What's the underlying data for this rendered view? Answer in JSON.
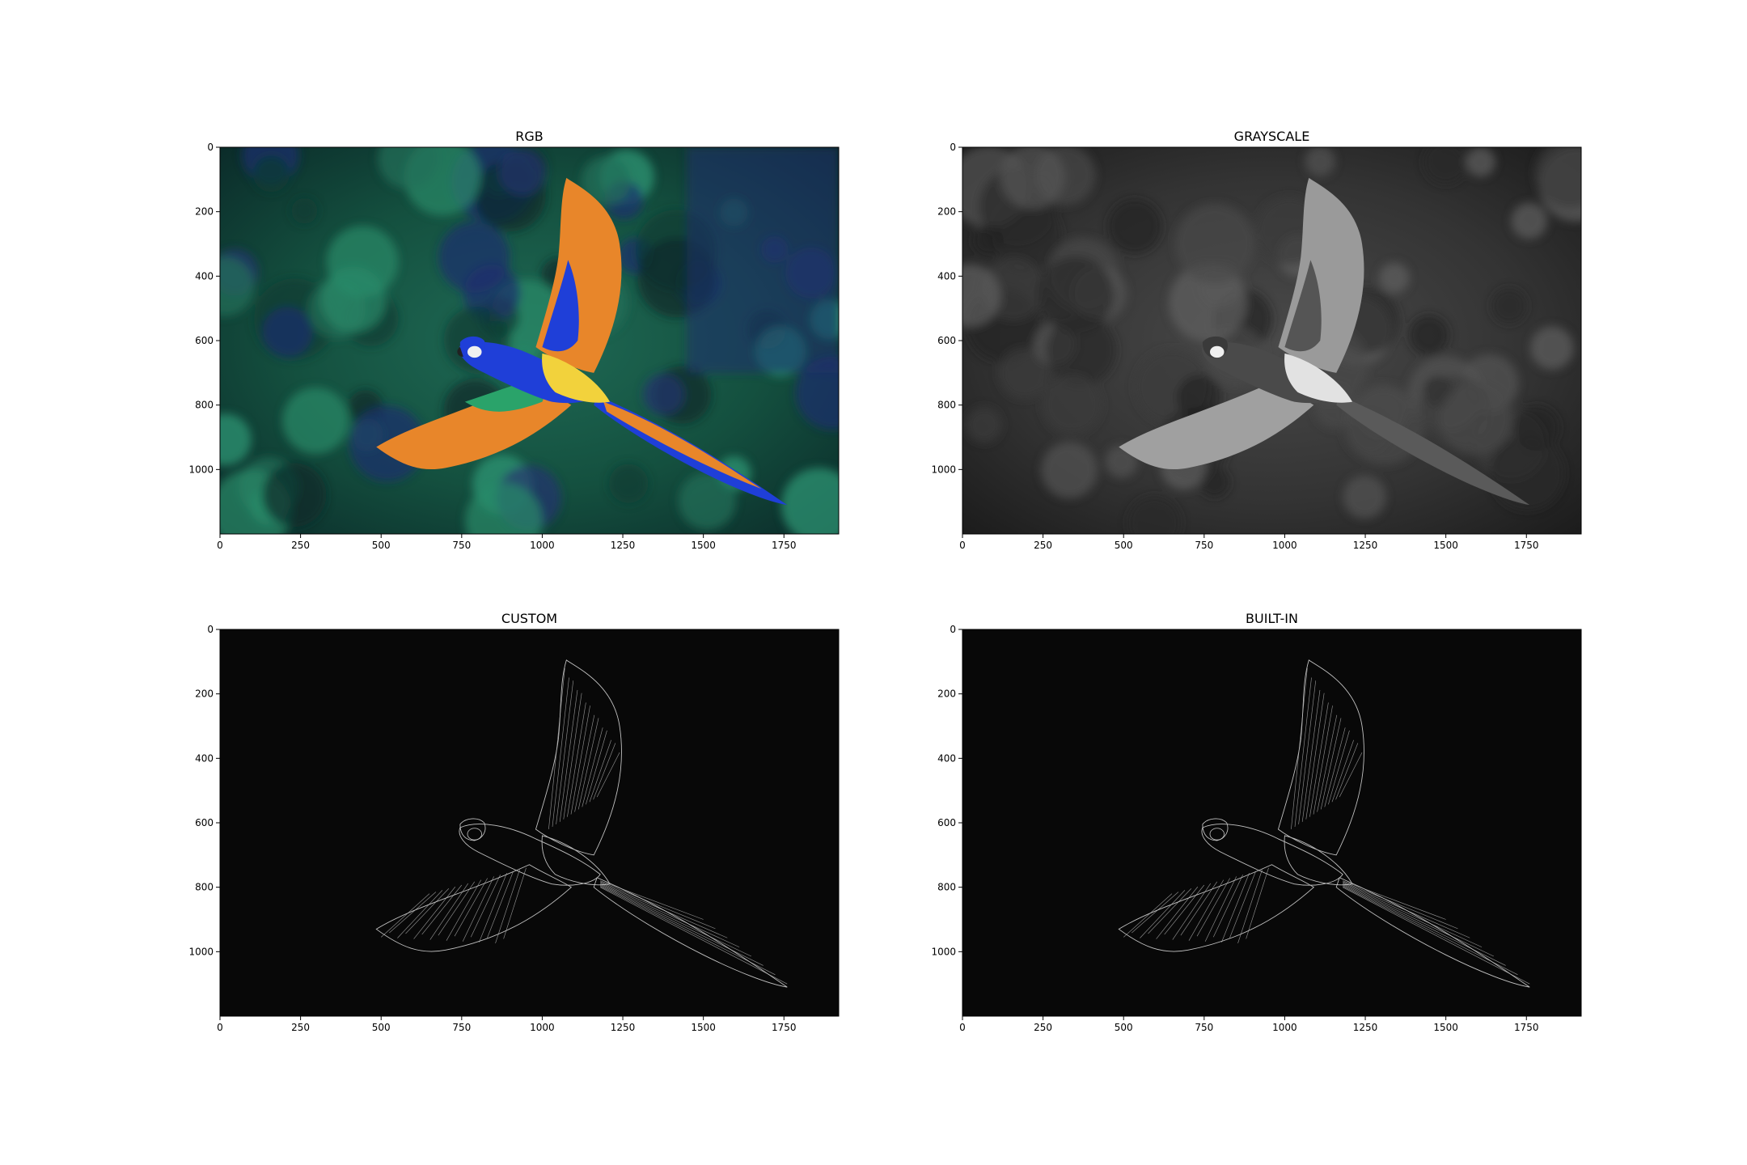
{
  "chart_data": [
    {
      "type": "image",
      "title": "RGB",
      "render": "color",
      "xlim": [
        0,
        1920
      ],
      "ylim": [
        1200,
        0
      ],
      "xticks": [
        0,
        250,
        500,
        750,
        1000,
        1250,
        1500,
        1750
      ],
      "yticks": [
        0,
        200,
        400,
        600,
        800,
        1000
      ]
    },
    {
      "type": "image",
      "title": "GRAYSCALE",
      "render": "gray",
      "xlim": [
        0,
        1920
      ],
      "ylim": [
        1200,
        0
      ],
      "xticks": [
        0,
        250,
        500,
        750,
        1000,
        1250,
        1500,
        1750
      ],
      "yticks": [
        0,
        200,
        400,
        600,
        800,
        1000
      ]
    },
    {
      "type": "image",
      "title": "CUSTOM",
      "render": "edges",
      "xlim": [
        0,
        1920
      ],
      "ylim": [
        1200,
        0
      ],
      "xticks": [
        0,
        250,
        500,
        750,
        1000,
        1250,
        1500,
        1750
      ],
      "yticks": [
        0,
        200,
        400,
        600,
        800,
        1000
      ]
    },
    {
      "type": "image",
      "title": "BUILT-IN",
      "render": "edges",
      "xlim": [
        0,
        1920
      ],
      "ylim": [
        1200,
        0
      ],
      "xticks": [
        0,
        250,
        500,
        750,
        1000,
        1250,
        1500,
        1750
      ],
      "yticks": [
        0,
        200,
        400,
        600,
        800,
        1000
      ]
    }
  ],
  "colors": {
    "background_green": "#1b5a45",
    "background_blue": "#1c2f6e",
    "wing_orange": "#e8862a",
    "body_blue": "#1f3fd8",
    "belly_yellow": "#f2d23c",
    "edge_line": "#d8d8d8"
  }
}
